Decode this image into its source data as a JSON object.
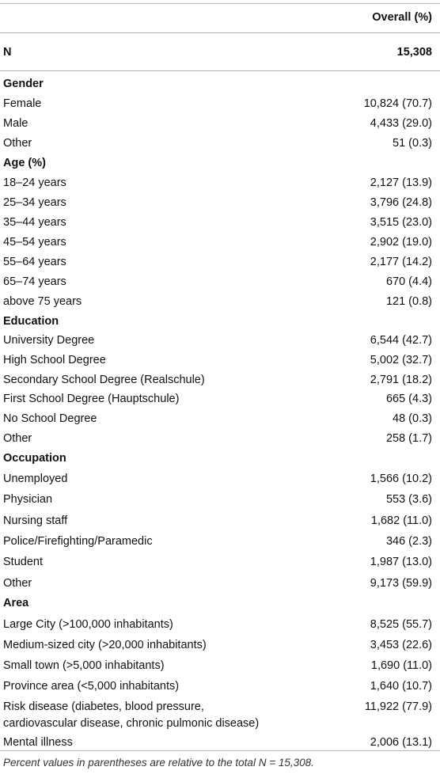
{
  "table": {
    "column_header": "Overall (%)",
    "n_label": "N",
    "n_value": "15,308",
    "sections": [
      {
        "title": "Gender",
        "rows": [
          {
            "label": "Female",
            "value": "10,824 (70.7)"
          },
          {
            "label": "Male",
            "value": "4,433 (29.0)"
          },
          {
            "label": "Other",
            "value": "51 (0.3)"
          }
        ]
      },
      {
        "title": "Age (%)",
        "rows": [
          {
            "label": "18–24 years",
            "value": "2,127 (13.9)"
          },
          {
            "label": "25–34 years",
            "value": "3,796 (24.8)"
          },
          {
            "label": "35–44 years",
            "value": "3,515 (23.0)"
          },
          {
            "label": "45–54 years",
            "value": "2,902 (19.0)"
          },
          {
            "label": "55–64 years",
            "value": "2,177 (14.2)"
          },
          {
            "label": "65–74 years",
            "value": "670 (4.4)"
          },
          {
            "label": "above 75 years",
            "value": "121 (0.8)"
          }
        ]
      },
      {
        "title": "Education",
        "rows": [
          {
            "label": "University Degree",
            "value": "6,544 (42.7)"
          },
          {
            "label": "High School Degree",
            "value": "5,002 (32.7)"
          },
          {
            "label": "Secondary School Degree (Realschule)",
            "value": "2,791 (18.2)"
          },
          {
            "label": "First School Degree (Hauptschule)",
            "value": "665 (4.3)"
          },
          {
            "label": "No School Degree",
            "value": "48 (0.3)"
          },
          {
            "label": "Other",
            "value": "258 (1.7)"
          }
        ]
      },
      {
        "title": "Occupation",
        "rows": [
          {
            "label": "Unemployed",
            "value": "1,566 (10.2)"
          },
          {
            "label": "Physician",
            "value": "553 (3.6)"
          },
          {
            "label": "Nursing staff",
            "value": "1,682 (11.0)"
          },
          {
            "label": "Police/Firefighting/Paramedic",
            "value": "346 (2.3)"
          },
          {
            "label": "Student",
            "value": "1,987 (13.0)"
          },
          {
            "label": "Other",
            "value": "9,173 (59.9)"
          }
        ]
      },
      {
        "title": "Area",
        "rows": [
          {
            "label": "Large City (>100,000 inhabitants)",
            "value": "8,525 (55.7)"
          },
          {
            "label": "Medium-sized city (>20,000 inhabitants)",
            "value": "3,453 (22.6)"
          },
          {
            "label": "Small town (>5,000 inhabitants)",
            "value": "1,690 (11.0)"
          },
          {
            "label": "Province area (<5,000 inhabitants)",
            "value": "1,640 (10.7)"
          }
        ]
      }
    ],
    "extra_rows": [
      {
        "label": "Risk disease (diabetes, blood pressure, cardiovascular disease, chronic pulmonic disease)",
        "value": "11,922 (77.9)"
      },
      {
        "label": "Mental illness",
        "value": "2,006 (13.1)"
      }
    ]
  },
  "footnote": {
    "text_before": "Percent values in parentheses are relative to the total ",
    "formula": "N = 15,308",
    "text_after": "."
  }
}
